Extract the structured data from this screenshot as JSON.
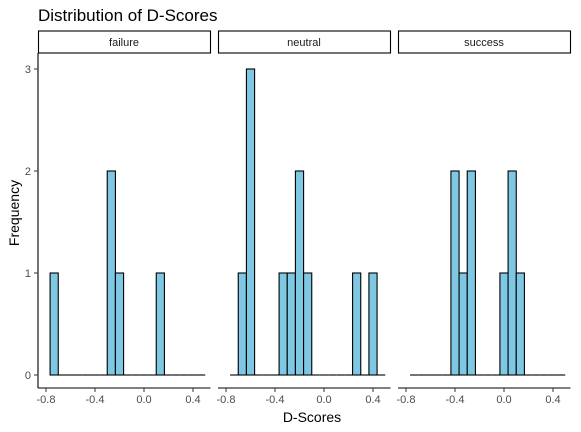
{
  "chart_data": {
    "type": "bar",
    "title": "Distribution of D-Scores",
    "xlabel": "D-Scores",
    "ylabel": "Frequency",
    "xlim": [
      -0.8,
      0.6
    ],
    "ylim": [
      0,
      3
    ],
    "x_ticks": [
      "-0.8",
      "-0.4",
      "0.0",
      "0.4"
    ],
    "x_tick_values": [
      -0.8,
      -0.4,
      0.0,
      0.4
    ],
    "y_ticks": [
      "0",
      "1",
      "2",
      "3"
    ],
    "y_tick_values": [
      0,
      1,
      2,
      3
    ],
    "bin_width": 0.0667,
    "bar_color": "#7ec8e3",
    "bin_centers": [
      -0.7333,
      -0.6667,
      -0.6,
      -0.5333,
      -0.4667,
      -0.4,
      -0.3333,
      -0.2667,
      -0.2,
      -0.1333,
      -0.0667,
      0.0,
      0.0667,
      0.1333,
      0.2,
      0.2667,
      0.3333,
      0.4,
      0.4667
    ],
    "panels": [
      {
        "name": "failure",
        "values": [
          1,
          0,
          0,
          0,
          0,
          0,
          0,
          2,
          1,
          0,
          0,
          0,
          0,
          1,
          0,
          0,
          0,
          0,
          0
        ]
      },
      {
        "name": "neutral",
        "values": [
          0,
          1,
          3,
          0,
          0,
          0,
          1,
          1,
          2,
          1,
          0,
          0,
          0,
          0,
          0,
          1,
          0,
          1,
          0
        ]
      },
      {
        "name": "success",
        "values": [
          0,
          0,
          0,
          0,
          0,
          2,
          1,
          2,
          0,
          0,
          0,
          1,
          2,
          1,
          0,
          0,
          0,
          0,
          0
        ]
      }
    ]
  }
}
